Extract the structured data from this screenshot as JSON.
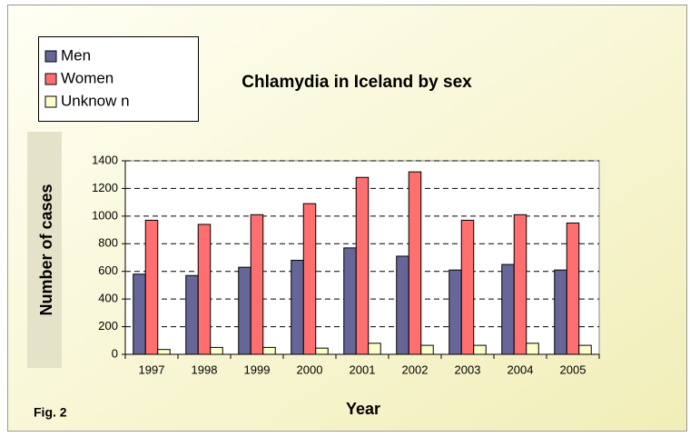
{
  "chart_data": {
    "type": "bar",
    "title": "Chlamydia in Iceland by sex",
    "y_label": "Number of cases",
    "x_label": "Year",
    "figure_label": "Fig. 2",
    "categories": [
      "1997",
      "1998",
      "1999",
      "2000",
      "2001",
      "2002",
      "2003",
      "2004",
      "2005"
    ],
    "series": [
      {
        "name": "Men",
        "color": "#666699",
        "values": [
          580,
          570,
          630,
          680,
          770,
          710,
          610,
          650,
          610
        ]
      },
      {
        "name": "Women",
        "color": "#ff6f6f",
        "values": [
          970,
          940,
          1010,
          1090,
          1280,
          1320,
          970,
          1010,
          950
        ]
      },
      {
        "name": "Unknow n",
        "color": "#ffffcc",
        "values": [
          35,
          50,
          50,
          45,
          80,
          65,
          65,
          80,
          65
        ]
      }
    ],
    "ylim": [
      0,
      1400
    ],
    "yticks": [
      0,
      200,
      400,
      600,
      800,
      1000,
      1200,
      1400
    ],
    "grid": true
  }
}
